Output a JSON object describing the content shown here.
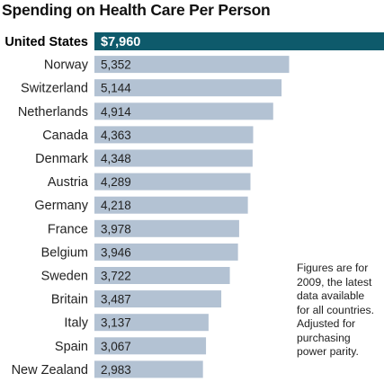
{
  "chart_data": {
    "type": "bar",
    "orientation": "horizontal",
    "title": "Spending on Health Care Per Person",
    "categories": [
      "United States",
      "Norway",
      "Switzerland",
      "Netherlands",
      "Canada",
      "Denmark",
      "Austria",
      "Germany",
      "France",
      "Belgium",
      "Sweden",
      "Britain",
      "Italy",
      "Spain",
      "New Zealand"
    ],
    "values": [
      7960,
      5352,
      5144,
      4914,
      4363,
      4348,
      4289,
      4218,
      3978,
      3946,
      3722,
      3487,
      3137,
      3067,
      2983
    ],
    "value_labels": [
      "$7,960",
      "5,352",
      "5,144",
      "4,914",
      "4,363",
      "4,348",
      "4,289",
      "4,218",
      "3,978",
      "3,946",
      "3,722",
      "3,487",
      "3,137",
      "3,067",
      "2,983"
    ],
    "highlight_index": 0,
    "xlim": [
      0,
      7960
    ],
    "grid": false,
    "colors": {
      "highlight": "#0e5a6b",
      "bar": "#b3c2d3"
    },
    "note_lines": [
      "Figures are for",
      "2009, the latest",
      "data available",
      "for all countries.",
      "Adjusted for",
      "purchasing",
      "power parity."
    ]
  }
}
